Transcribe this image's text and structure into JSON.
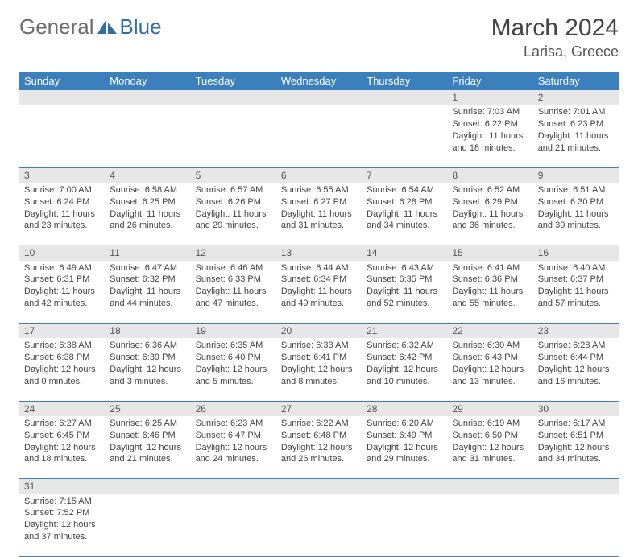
{
  "logo": {
    "text1": "General",
    "text2": "Blue"
  },
  "header": {
    "title": "March 2024",
    "location": "Larisa, Greece"
  },
  "columns": [
    "Sunday",
    "Monday",
    "Tuesday",
    "Wednesday",
    "Thursday",
    "Friday",
    "Saturday"
  ],
  "colors": {
    "header_bg": "#3b7fbd",
    "header_fg": "#ffffff",
    "daynum_bg": "#e7e7e7",
    "rule": "#3b7fbd",
    "text": "#444444",
    "logo_gray": "#6c6c6c",
    "logo_blue": "#2f6fa3"
  },
  "rows": [
    {
      "nums": [
        "",
        "",
        "",
        "",
        "",
        "1",
        "2"
      ],
      "cells": [
        null,
        null,
        null,
        null,
        null,
        {
          "sunrise": "7:03 AM",
          "sunset": "6:22 PM",
          "daylight": "11 hours and 18 minutes."
        },
        {
          "sunrise": "7:01 AM",
          "sunset": "6:23 PM",
          "daylight": "11 hours and 21 minutes."
        }
      ]
    },
    {
      "nums": [
        "3",
        "4",
        "5",
        "6",
        "7",
        "8",
        "9"
      ],
      "cells": [
        {
          "sunrise": "7:00 AM",
          "sunset": "6:24 PM",
          "daylight": "11 hours and 23 minutes."
        },
        {
          "sunrise": "6:58 AM",
          "sunset": "6:25 PM",
          "daylight": "11 hours and 26 minutes."
        },
        {
          "sunrise": "6:57 AM",
          "sunset": "6:26 PM",
          "daylight": "11 hours and 29 minutes."
        },
        {
          "sunrise": "6:55 AM",
          "sunset": "6:27 PM",
          "daylight": "11 hours and 31 minutes."
        },
        {
          "sunrise": "6:54 AM",
          "sunset": "6:28 PM",
          "daylight": "11 hours and 34 minutes."
        },
        {
          "sunrise": "6:52 AM",
          "sunset": "6:29 PM",
          "daylight": "11 hours and 36 minutes."
        },
        {
          "sunrise": "6:51 AM",
          "sunset": "6:30 PM",
          "daylight": "11 hours and 39 minutes."
        }
      ]
    },
    {
      "nums": [
        "10",
        "11",
        "12",
        "13",
        "14",
        "15",
        "16"
      ],
      "cells": [
        {
          "sunrise": "6:49 AM",
          "sunset": "6:31 PM",
          "daylight": "11 hours and 42 minutes."
        },
        {
          "sunrise": "6:47 AM",
          "sunset": "6:32 PM",
          "daylight": "11 hours and 44 minutes."
        },
        {
          "sunrise": "6:46 AM",
          "sunset": "6:33 PM",
          "daylight": "11 hours and 47 minutes."
        },
        {
          "sunrise": "6:44 AM",
          "sunset": "6:34 PM",
          "daylight": "11 hours and 49 minutes."
        },
        {
          "sunrise": "6:43 AM",
          "sunset": "6:35 PM",
          "daylight": "11 hours and 52 minutes."
        },
        {
          "sunrise": "6:41 AM",
          "sunset": "6:36 PM",
          "daylight": "11 hours and 55 minutes."
        },
        {
          "sunrise": "6:40 AM",
          "sunset": "6:37 PM",
          "daylight": "11 hours and 57 minutes."
        }
      ]
    },
    {
      "nums": [
        "17",
        "18",
        "19",
        "20",
        "21",
        "22",
        "23"
      ],
      "cells": [
        {
          "sunrise": "6:38 AM",
          "sunset": "6:38 PM",
          "daylight": "12 hours and 0 minutes."
        },
        {
          "sunrise": "6:36 AM",
          "sunset": "6:39 PM",
          "daylight": "12 hours and 3 minutes."
        },
        {
          "sunrise": "6:35 AM",
          "sunset": "6:40 PM",
          "daylight": "12 hours and 5 minutes."
        },
        {
          "sunrise": "6:33 AM",
          "sunset": "6:41 PM",
          "daylight": "12 hours and 8 minutes."
        },
        {
          "sunrise": "6:32 AM",
          "sunset": "6:42 PM",
          "daylight": "12 hours and 10 minutes."
        },
        {
          "sunrise": "6:30 AM",
          "sunset": "6:43 PM",
          "daylight": "12 hours and 13 minutes."
        },
        {
          "sunrise": "6:28 AM",
          "sunset": "6:44 PM",
          "daylight": "12 hours and 16 minutes."
        }
      ]
    },
    {
      "nums": [
        "24",
        "25",
        "26",
        "27",
        "28",
        "29",
        "30"
      ],
      "cells": [
        {
          "sunrise": "6:27 AM",
          "sunset": "6:45 PM",
          "daylight": "12 hours and 18 minutes."
        },
        {
          "sunrise": "6:25 AM",
          "sunset": "6:46 PM",
          "daylight": "12 hours and 21 minutes."
        },
        {
          "sunrise": "6:23 AM",
          "sunset": "6:47 PM",
          "daylight": "12 hours and 24 minutes."
        },
        {
          "sunrise": "6:22 AM",
          "sunset": "6:48 PM",
          "daylight": "12 hours and 26 minutes."
        },
        {
          "sunrise": "6:20 AM",
          "sunset": "6:49 PM",
          "daylight": "12 hours and 29 minutes."
        },
        {
          "sunrise": "6:19 AM",
          "sunset": "6:50 PM",
          "daylight": "12 hours and 31 minutes."
        },
        {
          "sunrise": "6:17 AM",
          "sunset": "6:51 PM",
          "daylight": "12 hours and 34 minutes."
        }
      ]
    },
    {
      "nums": [
        "31",
        "",
        "",
        "",
        "",
        "",
        ""
      ],
      "cells": [
        {
          "sunrise": "7:15 AM",
          "sunset": "7:52 PM",
          "daylight": "12 hours and 37 minutes."
        },
        null,
        null,
        null,
        null,
        null,
        null
      ]
    }
  ],
  "labels": {
    "sunrise": "Sunrise: ",
    "sunset": "Sunset: ",
    "daylight": "Daylight: "
  }
}
